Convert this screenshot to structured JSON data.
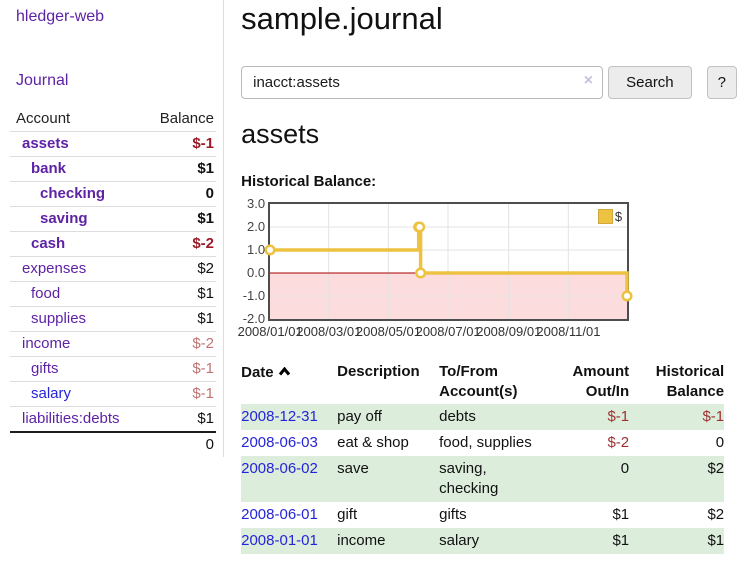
{
  "app": {
    "title": "hledger-web"
  },
  "colors": {
    "link_purple": "#5e23a5",
    "link_blue": "#2424d9",
    "negative_strong": "#9b1b29",
    "negative_soft": "#c17373",
    "negative_table": "#9e3132",
    "row_green": "#dceddb",
    "clear_icon": "#cbbfdf"
  },
  "sidebar": {
    "journal_label": "Journal",
    "accounts_table": {
      "account_header": "Account",
      "balance_header": "Balance",
      "rows": [
        {
          "name": "assets",
          "balance": "$-1",
          "indent": 1,
          "bold": true,
          "link_color": "purple"
        },
        {
          "name": "bank",
          "balance": "$1",
          "indent": 2,
          "bold": true,
          "link_color": "purple"
        },
        {
          "name": "checking",
          "balance": "0",
          "indent": 3,
          "bold": true,
          "link_color": "purple"
        },
        {
          "name": "saving",
          "balance": "$1",
          "indent": 3,
          "bold": true,
          "link_color": "purple"
        },
        {
          "name": "cash",
          "balance": "$-2",
          "indent": 2,
          "bold": true,
          "link_color": "purple"
        },
        {
          "name": "expenses",
          "balance": "$2",
          "indent": 1,
          "bold": false,
          "link_color": "purple"
        },
        {
          "name": "food",
          "balance": "$1",
          "indent": 2,
          "bold": false,
          "link_color": "purple"
        },
        {
          "name": "supplies",
          "balance": "$1",
          "indent": 2,
          "bold": false,
          "link_color": "purple"
        },
        {
          "name": "income",
          "balance": "$-2",
          "indent": 1,
          "bold": false,
          "link_color": "purple"
        },
        {
          "name": "gifts",
          "balance": "$-1",
          "indent": 2,
          "bold": false,
          "link_color": "purple"
        },
        {
          "name": "salary",
          "balance": "$-1",
          "indent": 2,
          "bold": false,
          "link_color": "blue"
        },
        {
          "name": "liabilities:debts",
          "balance": "$1",
          "indent": 1,
          "bold": false,
          "link_color": "purple"
        }
      ],
      "total": "0"
    }
  },
  "main": {
    "title": "sample.journal",
    "search": {
      "value": "inacct:assets",
      "clear_icon": "×",
      "button_label": "Search",
      "help_label": "?"
    },
    "account_heading": "assets"
  },
  "chart_data": {
    "type": "line",
    "step": true,
    "title": "Historical Balance:",
    "series": [
      {
        "name": "$",
        "color": "#edc240",
        "points": [
          [
            "2008-01-01",
            1.0
          ],
          [
            "2008-06-01",
            2.0
          ],
          [
            "2008-06-02",
            2.0
          ],
          [
            "2008-06-03",
            0.0
          ],
          [
            "2008-12-31",
            -1.0
          ]
        ]
      }
    ],
    "xrange": [
      "2008-01-01",
      "2008-12-31"
    ],
    "ylim": [
      -2.0,
      3.0
    ],
    "yticks": [
      3.0,
      2.0,
      1.0,
      0.0,
      -1.0,
      -2.0
    ],
    "xticks": [
      "2008/01/01",
      "2008/03/01",
      "2008/05/01",
      "2008/07/01",
      "2008/09/01",
      "2008/11/01"
    ],
    "legend": {
      "position": "top-right",
      "label": "$"
    },
    "grid": true,
    "below_zero_fill": "#fcdcdc",
    "zero_line_color": "#a40000",
    "grid_color": "#e3e3e3"
  },
  "register": {
    "headers": {
      "date": "Date",
      "sort_icon": "chevron-up",
      "description": "Description",
      "accounts": "To/From Account(s)",
      "amount": "Amount Out/In",
      "balance": "Historical Balance"
    },
    "rows": [
      {
        "date": "2008-12-31",
        "description": "pay off",
        "accounts": "debts",
        "amount": "$-1",
        "balance": "$-1"
      },
      {
        "date": "2008-06-03",
        "description": "eat & shop",
        "accounts": "food, supplies",
        "amount": "$-2",
        "balance": "0"
      },
      {
        "date": "2008-06-02",
        "description": "save",
        "accounts": "saving, checking",
        "amount": "0",
        "balance": "$2"
      },
      {
        "date": "2008-06-01",
        "description": "gift",
        "accounts": "gifts",
        "amount": "$1",
        "balance": "$2"
      },
      {
        "date": "2008-01-01",
        "description": "income",
        "accounts": "salary",
        "amount": "$1",
        "balance": "$1"
      }
    ]
  }
}
